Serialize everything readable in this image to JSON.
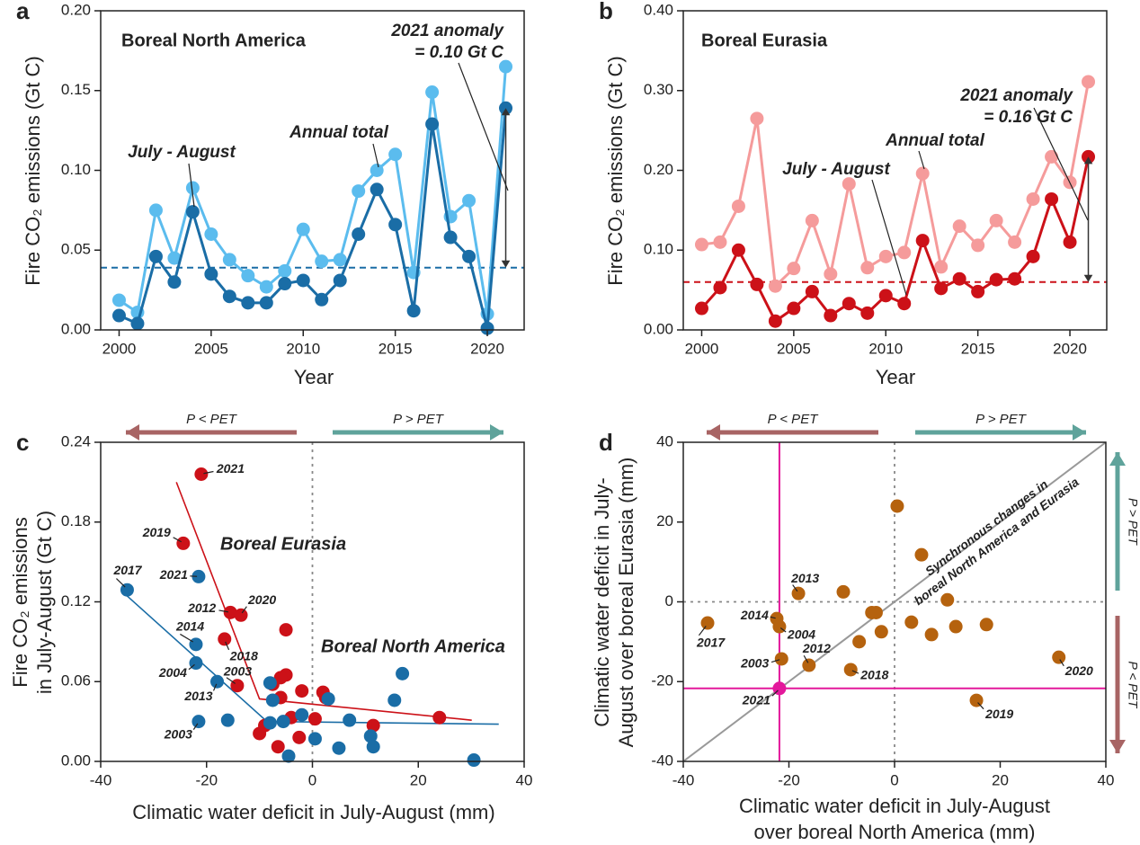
{
  "chart_data": [
    {
      "type": "line",
      "panel": "a",
      "region": "Boreal North America",
      "xlabel": "Year",
      "ylabel": [
        "Fire CO₂ emissions (Gt C)"
      ],
      "x": [
        2000,
        2001,
        2002,
        2003,
        2004,
        2005,
        2006,
        2007,
        2008,
        2009,
        2010,
        2011,
        2012,
        2013,
        2014,
        2015,
        2016,
        2017,
        2018,
        2019,
        2020,
        2021
      ],
      "series": [
        {
          "name": "Annual total",
          "color": "#5bbcee",
          "values": [
            0.0186,
            0.011,
            0.075,
            0.045,
            0.089,
            0.06,
            0.044,
            0.034,
            0.027,
            0.037,
            0.063,
            0.043,
            0.044,
            0.087,
            0.1,
            0.11,
            0.036,
            0.149,
            0.071,
            0.081,
            0.01,
            0.165
          ]
        },
        {
          "name": "July - August",
          "color": "#1a6da6",
          "values": [
            0.009,
            0.004,
            0.046,
            0.03,
            0.074,
            0.035,
            0.021,
            0.017,
            0.017,
            0.029,
            0.031,
            0.019,
            0.031,
            0.06,
            0.088,
            0.066,
            0.012,
            0.129,
            0.058,
            0.046,
            0.001,
            0.139
          ]
        }
      ],
      "mean_line": 0.039,
      "anomaly_label": [
        "2021 anomaly",
        "= 0.10 Gt C"
      ],
      "xlim": [
        1999,
        2022
      ],
      "xticks": [
        2000,
        2005,
        2010,
        2015,
        2020
      ],
      "ylim": [
        0,
        0.2
      ],
      "yticks": [
        {
          "value": 0,
          "label": "0.00"
        },
        {
          "value": 0.05,
          "label": "0.05"
        },
        {
          "value": 0.1,
          "label": "0.10"
        },
        {
          "value": 0.15,
          "label": "0.15"
        },
        {
          "value": 0.2,
          "label": "0.20"
        }
      ]
    },
    {
      "type": "line",
      "panel": "b",
      "region": "Boreal Eurasia",
      "xlabel": "Year",
      "ylabel": [
        "Fire CO₂ emissions (Gt C)"
      ],
      "x": [
        2000,
        2001,
        2002,
        2003,
        2004,
        2005,
        2006,
        2007,
        2008,
        2009,
        2010,
        2011,
        2012,
        2013,
        2014,
        2015,
        2016,
        2017,
        2018,
        2019,
        2020,
        2021
      ],
      "series": [
        {
          "name": "Annual total",
          "color": "#f59b9b",
          "values": [
            0.107,
            0.11,
            0.155,
            0.265,
            0.055,
            0.077,
            0.137,
            0.07,
            0.183,
            0.078,
            0.092,
            0.097,
            0.196,
            0.079,
            0.13,
            0.106,
            0.137,
            0.11,
            0.164,
            0.217,
            0.185,
            0.311
          ]
        },
        {
          "name": "July - August",
          "color": "#cc1118",
          "values": [
            0.027,
            0.053,
            0.1,
            0.057,
            0.011,
            0.027,
            0.048,
            0.018,
            0.033,
            0.021,
            0.043,
            0.033,
            0.112,
            0.052,
            0.064,
            0.048,
            0.063,
            0.064,
            0.092,
            0.164,
            0.11,
            0.217
          ]
        }
      ],
      "mean_line": 0.06,
      "anomaly_label": [
        "2021 anomaly",
        "= 0.16 Gt C"
      ],
      "xlim": [
        1999,
        2022
      ],
      "xticks": [
        2000,
        2005,
        2010,
        2015,
        2020
      ],
      "ylim": [
        0,
        0.4
      ],
      "yticks": [
        {
          "value": 0,
          "label": "0.00"
        },
        {
          "value": 0.1,
          "label": "0.10"
        },
        {
          "value": 0.2,
          "label": "0.20"
        },
        {
          "value": 0.3,
          "label": "0.30"
        },
        {
          "value": 0.4,
          "label": "0.40"
        }
      ]
    },
    {
      "type": "scatter",
      "panel": "c",
      "xlabel": [
        "Climatic water deficit in July-August (mm)"
      ],
      "ylabel": [
        "Fire CO₂ emissions",
        "in July-August (Gt C)"
      ],
      "arrows": {
        "left": "P < PET",
        "right": "P > PET"
      },
      "zero_lines": [
        "x"
      ],
      "series": [
        {
          "name": "Boreal Eurasia",
          "color": "#cc1118",
          "x": [
            -21.0,
            -24.4,
            -15.5,
            -13.5,
            -16.6,
            -14.2,
            -5,
            -5,
            -6,
            -7.5,
            -6,
            -2,
            2,
            2.5,
            0.5,
            -4,
            -9,
            -10,
            -6.5,
            -2.5,
            11.5,
            24
          ],
          "values": [
            0.216,
            0.164,
            0.112,
            0.11,
            0.092,
            0.057,
            0.099,
            0.065,
            0.063,
            0.058,
            0.048,
            0.053,
            0.052,
            0.048,
            0.032,
            0.033,
            0.027,
            0.021,
            0.011,
            0.018,
            0.027,
            0.033
          ],
          "labels": [
            "2021",
            "2019",
            "2012",
            "2020",
            "2018",
            "2003",
            null,
            null,
            null,
            null,
            null,
            null,
            null,
            null,
            null,
            null,
            null,
            null,
            null,
            null,
            null,
            null
          ],
          "fit_x": [
            -25.7,
            -10,
            30.1
          ],
          "fit_y": [
            0.21,
            0.047,
            0.031
          ]
        },
        {
          "name": "Boreal North America",
          "color": "#1a6da6",
          "x": [
            -35,
            -21.5,
            -22,
            -22,
            -18,
            -21.5,
            -16,
            -8,
            -7.5,
            -8,
            -5.5,
            -2,
            -4.5,
            0.5,
            3,
            5,
            7,
            11,
            11.5,
            15.5,
            17,
            30.5
          ],
          "values": [
            0.129,
            0.139,
            0.088,
            0.074,
            0.06,
            0.03,
            0.031,
            0.059,
            0.046,
            0.029,
            0.03,
            0.035,
            0.004,
            0.017,
            0.047,
            0.01,
            0.031,
            0.019,
            0.011,
            0.046,
            0.066,
            0.001
          ],
          "labels": [
            "2017",
            "2021",
            "2014",
            "2004",
            "2013",
            "2003",
            null,
            null,
            null,
            null,
            null,
            null,
            null,
            null,
            null,
            null,
            null,
            null,
            null,
            null,
            null,
            null
          ],
          "fit_x": [
            -36,
            -8.6,
            35.2
          ],
          "fit_y": [
            0.128,
            0.03,
            0.028
          ]
        }
      ],
      "xlim": [
        -40,
        40
      ],
      "xticks": [
        -40,
        -20,
        0,
        20,
        40
      ],
      "ylim": [
        0,
        0.24
      ],
      "yticks": [
        {
          "value": 0,
          "label": "0.00"
        },
        {
          "value": 0.06,
          "label": "0.06"
        },
        {
          "value": 0.12,
          "label": "0.12"
        },
        {
          "value": 0.18,
          "label": "0.18"
        },
        {
          "value": 0.24,
          "label": "0.24"
        }
      ]
    },
    {
      "type": "scatter",
      "panel": "d",
      "xlabel": [
        "Climatic water deficit in July-August",
        "over boreal North America (mm)"
      ],
      "ylabel": [
        "Climatic water deficit in July-",
        "August over boreal Eurasia (mm)"
      ],
      "arrows": {
        "left": "P < PET",
        "right": "P > PET",
        "up": "P > PET",
        "down": "P < PET"
      },
      "zero_lines": [
        "x",
        "y"
      ],
      "diagonal_label": [
        "Synchronous changes in",
        "boreal North America and Eurasia"
      ],
      "series": [
        {
          "color": "#b5620e",
          "x": [
            -35.4,
            -18.2,
            -22.3,
            -21.8,
            -16.2,
            -21.4,
            -8.3,
            -9.7,
            -4.3,
            -3.5,
            -6.7,
            -2.5,
            0.5,
            5.1,
            3.2,
            7,
            10,
            11.6,
            17.4,
            31.1,
            15.5
          ],
          "values": [
            -5.3,
            2.1,
            -4.2,
            -6.2,
            -15.9,
            -14.3,
            -17,
            2.5,
            -2.7,
            -2.7,
            -10,
            -7.5,
            24,
            11.8,
            -5.1,
            -8.2,
            0.5,
            -6.2,
            -5.7,
            -13.9,
            -24.7
          ],
          "labels": [
            "2017",
            "2013",
            "2014",
            "2004",
            "2012",
            "2003",
            "2018",
            null,
            null,
            null,
            null,
            null,
            null,
            null,
            null,
            null,
            null,
            null,
            null,
            "2020",
            "2019"
          ]
        },
        {
          "color": "#e3189b",
          "crosshair": true,
          "x": [
            -21.8
          ],
          "values": [
            -21.7
          ],
          "labels": [
            "2021"
          ]
        }
      ],
      "xlim": [
        -40,
        40
      ],
      "xticks": [
        -40,
        -20,
        0,
        20,
        40
      ],
      "ylim": [
        -40,
        40
      ],
      "yticks": [
        -40,
        -20,
        0,
        20,
        40
      ]
    }
  ]
}
